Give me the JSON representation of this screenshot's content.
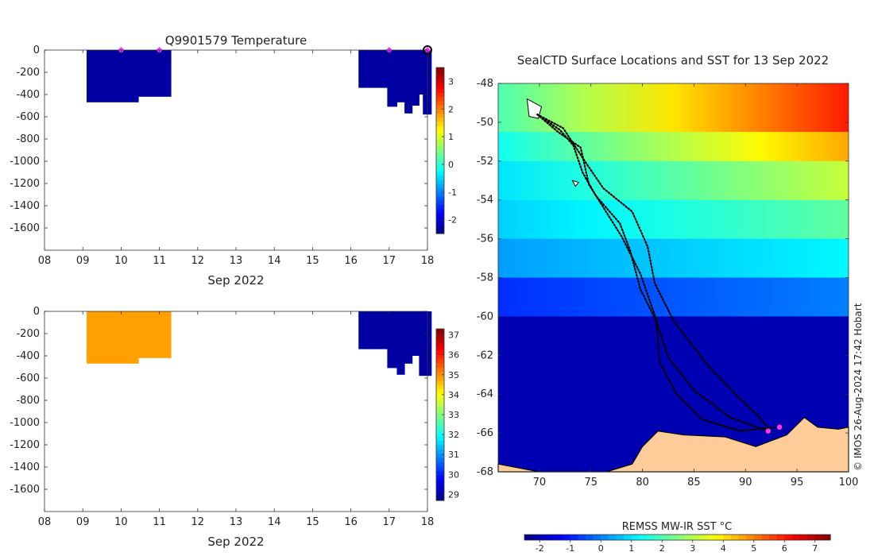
{
  "chart_data": [
    {
      "type": "heatmap",
      "title": "Q9901579  Temperature",
      "xlabel": "Sep 2022",
      "ylabel": "",
      "x_ticks": [
        "08",
        "09",
        "10",
        "11",
        "12",
        "13",
        "14",
        "15",
        "16",
        "17",
        "18"
      ],
      "x_range": [
        8,
        18
      ],
      "y_ticks": [
        "0",
        "-200",
        "-400",
        "-600",
        "-800",
        "-1000",
        "-1200",
        "-1400",
        "-1600"
      ],
      "y_range": [
        -1800,
        0
      ],
      "colorbar": {
        "ticks": [
          "-2",
          "-1",
          "0",
          "1",
          "2",
          "3"
        ],
        "range": [
          -2.5,
          3.5
        ],
        "colormap": "jet"
      },
      "profiles": [
        {
          "x0": 9.1,
          "x1": 10.45,
          "depth": -470,
          "value": -2.3
        },
        {
          "x0": 10.45,
          "x1": 11.3,
          "depth": -420,
          "value": -2.3
        },
        {
          "x0": 16.2,
          "x1": 16.95,
          "depth": -340,
          "value": -2.3
        },
        {
          "x0": 16.95,
          "x1": 17.2,
          "depth": -510,
          "value": -2.3
        },
        {
          "x0": 17.2,
          "x1": 17.4,
          "depth": -470,
          "value": -2.3
        },
        {
          "x0": 17.4,
          "x1": 17.6,
          "depth": -570,
          "value": -2.3
        },
        {
          "x0": 17.6,
          "x1": 17.78,
          "depth": -500,
          "value": -2.3
        },
        {
          "x0": 17.78,
          "x1": 17.88,
          "depth": -400,
          "value": -2.3
        },
        {
          "x0": 17.88,
          "x1": 18.1,
          "depth": -580,
          "value": -2.3
        }
      ],
      "surface_markers": [
        10.0,
        11.0,
        17.0,
        18.0
      ],
      "marker_color": "#ff33ff"
    },
    {
      "type": "heatmap",
      "title": "",
      "xlabel": "Sep 2022",
      "ylabel": "",
      "x_ticks": [
        "08",
        "09",
        "10",
        "11",
        "12",
        "13",
        "14",
        "15",
        "16",
        "17",
        "18"
      ],
      "x_range": [
        8,
        18
      ],
      "y_ticks": [
        "0",
        "-200",
        "-400",
        "-600",
        "-800",
        "-1000",
        "-1200",
        "-1400",
        "-1600"
      ],
      "y_range": [
        -1800,
        0
      ],
      "colorbar": {
        "ticks": [
          "29",
          "30",
          "31",
          "32",
          "33",
          "34",
          "35",
          "36",
          "37"
        ],
        "range": [
          28.7,
          37.3
        ],
        "colormap": "jet"
      },
      "profiles": [
        {
          "x0": 9.1,
          "x1": 10.45,
          "depth": -470,
          "color": "#ffa000"
        },
        {
          "x0": 10.45,
          "x1": 11.3,
          "depth": -420,
          "color": "#ffa000"
        },
        {
          "x0": 16.2,
          "x1": 16.95,
          "depth": -340,
          "value": 29
        },
        {
          "x0": 16.95,
          "x1": 17.2,
          "depth": -510,
          "value": 29
        },
        {
          "x0": 17.2,
          "x1": 17.4,
          "depth": -570,
          "value": 29
        },
        {
          "x0": 17.4,
          "x1": 17.6,
          "depth": -470,
          "value": 29
        },
        {
          "x0": 17.6,
          "x1": 17.78,
          "depth": -400,
          "value": 29
        },
        {
          "x0": 17.78,
          "x1": 18.1,
          "depth": -580,
          "value": 29
        }
      ]
    },
    {
      "type": "map",
      "title": "SealCTD Surface Locations and SST for 13 Sep 2022",
      "x_ticks": [
        "70",
        "75",
        "80",
        "85",
        "90",
        "95",
        "100"
      ],
      "x_range": [
        66,
        100
      ],
      "y_ticks": [
        "-48",
        "-50",
        "-52",
        "-54",
        "-56",
        "-58",
        "-60",
        "-62",
        "-64",
        "-66",
        "-68"
      ],
      "y_range": [
        -68,
        -48
      ],
      "sst_bands": [
        {
          "lat_top": -48,
          "lat_bottom": -50.5,
          "west": 2.0,
          "east": 6.0
        },
        {
          "lat_top": -50.5,
          "lat_bottom": -52,
          "west": 1.4,
          "east": 4.6
        },
        {
          "lat_top": -52,
          "lat_bottom": -54,
          "west": 1.0,
          "east": 3.2
        },
        {
          "lat_top": -54,
          "lat_bottom": -56,
          "west": 0.8,
          "east": 2.2
        },
        {
          "lat_top": -56,
          "lat_bottom": -58,
          "west": 0.3,
          "east": 1.2
        },
        {
          "lat_top": -58,
          "lat_bottom": -60,
          "west": -0.8,
          "east": 0.0
        },
        {
          "lat_top": -60,
          "lat_bottom": -68,
          "west": -2.0,
          "east": -2.0
        }
      ],
      "tracks": [
        [
          [
            69.8,
            -49.6
          ],
          [
            72,
            -50.4
          ],
          [
            73.3,
            -51.2
          ],
          [
            74.2,
            -52.6
          ],
          [
            75.5,
            -53.8
          ],
          [
            77.8,
            -55.2
          ],
          [
            78.8,
            -56.6
          ],
          [
            79.8,
            -58.6
          ],
          [
            81.4,
            -60.3
          ],
          [
            82.5,
            -62.1
          ],
          [
            85,
            -63.8
          ],
          [
            88.5,
            -65.2
          ],
          [
            92.1,
            -65.9
          ]
        ],
        [
          [
            69.8,
            -49.6
          ],
          [
            72.3,
            -50.3
          ],
          [
            74.4,
            -52.0
          ],
          [
            76.2,
            -53.4
          ],
          [
            79,
            -54.6
          ],
          [
            80.5,
            -56.4
          ],
          [
            81.2,
            -58.3
          ],
          [
            83,
            -60.2
          ],
          [
            86.3,
            -62.5
          ],
          [
            89.2,
            -64.1
          ],
          [
            91.2,
            -65.1
          ],
          [
            92.3,
            -65.8
          ]
        ],
        [
          [
            69.8,
            -49.6
          ],
          [
            71.8,
            -50.5
          ],
          [
            74,
            -51.3
          ],
          [
            74.8,
            -53.2
          ],
          [
            78,
            -55.9
          ],
          [
            79.8,
            -57.8
          ],
          [
            81.3,
            -60.1
          ],
          [
            81.7,
            -62.4
          ],
          [
            83.3,
            -64.0
          ],
          [
            85.8,
            -65.3
          ],
          [
            89.5,
            -65.9
          ],
          [
            93.0,
            -65.7
          ]
        ]
      ],
      "locations": [
        [
          92.2,
          -65.9
        ],
        [
          93.3,
          -65.7
        ]
      ],
      "location_color": "#ff33ff",
      "land_color": "#ffcc99",
      "ocean_cold_color": "#000099",
      "colorbar": {
        "label": "REMSS MW-IR SST °C",
        "ticks": [
          "-2",
          "-1",
          "0",
          "1",
          "2",
          "3",
          "4",
          "5",
          "6",
          "7"
        ],
        "range": [
          -2.5,
          7.5
        ],
        "colormap": "jet"
      }
    }
  ],
  "credit": "© IMOS 26-Aug-2024 17:42 Hobart"
}
